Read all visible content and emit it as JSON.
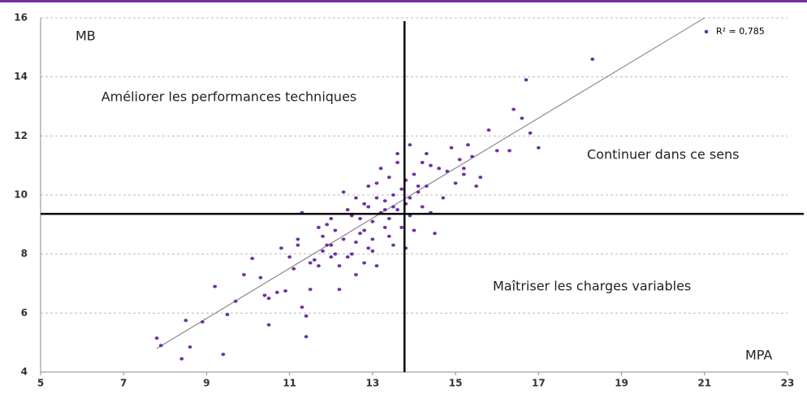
{
  "chart_data": {
    "type": "scatter",
    "xlim": [
      5,
      23
    ],
    "xticks": [
      5,
      7,
      9,
      11,
      13,
      15,
      17,
      19,
      21,
      23
    ],
    "ylim": [
      4,
      16
    ],
    "yticks": [
      4,
      6,
      8,
      10,
      12,
      14,
      16
    ],
    "grid": true,
    "color": "#7030a0",
    "x_axis_label": "MPA",
    "y_axis_label": "MB",
    "quadrant_labels": [
      "Améliorer les performances techniques",
      "Continuer dans ce sens",
      "Maîtriser les charges variables"
    ],
    "r2_label": "R² = 0,785",
    "vline": 13.77,
    "hline": 9.36,
    "trendline": {
      "x": [
        7.8,
        21
      ],
      "y": [
        4.8,
        16
      ]
    },
    "x": [
      7.8,
      7.9,
      8.4,
      8.5,
      8.6,
      8.9,
      9.2,
      9.4,
      9.5,
      9.7,
      9.9,
      10.1,
      10.3,
      10.4,
      10.5,
      10.5,
      10.7,
      10.8,
      10.9,
      11,
      11.1,
      11.2,
      11.2,
      11.3,
      11.3,
      11.4,
      11.4,
      11.5,
      11.5,
      11.6,
      11.7,
      11.8,
      11.8,
      11.9,
      12,
      12,
      12,
      12.1,
      12.2,
      12.2,
      12.3,
      12.3,
      12.4,
      12.5,
      12.5,
      12.6,
      12.6,
      12.7,
      12.8,
      12.8,
      12.9,
      12.9,
      13,
      13,
      13,
      13.1,
      13.1,
      13.2,
      13.2,
      13.3,
      13.3,
      13.4,
      13.4,
      13.5,
      13.5,
      13.6,
      13.6,
      13.7,
      13.7,
      13.8,
      13.8,
      13.9,
      13.9,
      14,
      14,
      14.1,
      14.2,
      14.3,
      14.3,
      14.4,
      14.5,
      14.6,
      14.7,
      14.8,
      14.9,
      15,
      15.1,
      15.2,
      15.3,
      15.4,
      15.5,
      15.6,
      15.8,
      16,
      16.3,
      16.4,
      16.6,
      16.7,
      16.8,
      17,
      18.3,
      12.1,
      11.7,
      12.7,
      13.3,
      13.9,
      14.2,
      13.5,
      12.9,
      13.1,
      12.4,
      13.6,
      13.8,
      11.9,
      12.6,
      14.1,
      15.2,
      13.4,
      14.4,
      12.8
    ],
    "values": [
      5.15,
      4.9,
      4.45,
      5.75,
      4.85,
      5.7,
      6.9,
      4.6,
      5.95,
      6.4,
      7.3,
      7.85,
      7.2,
      6.6,
      5.6,
      6.5,
      6.7,
      8.2,
      6.75,
      7.9,
      7.5,
      8.3,
      8.5,
      9.4,
      6.2,
      5.9,
      5.2,
      6.8,
      7.7,
      7.8,
      7.6,
      8.1,
      8.6,
      9,
      7.9,
      8.3,
      9.2,
      8.8,
      6.8,
      7.6,
      10.1,
      8.5,
      9.5,
      8,
      9.3,
      7.3,
      8.4,
      9.2,
      8.8,
      7.7,
      9.6,
      10.3,
      8.1,
      8.5,
      9.1,
      9.9,
      7.6,
      9.4,
      10.9,
      8.9,
      9.8,
      10.6,
      9.2,
      8.3,
      10,
      9.5,
      11.1,
      10.2,
      8.9,
      9.7,
      10.5,
      11.7,
      9.3,
      10.7,
      8.8,
      10.1,
      9.6,
      11.4,
      10.3,
      11,
      8.7,
      10.9,
      9.9,
      10.8,
      11.6,
      10.4,
      11.2,
      10.7,
      11.7,
      11.3,
      10.3,
      10.6,
      12.2,
      11.5,
      11.5,
      12.9,
      12.6,
      13.9,
      12.1,
      11.6,
      14.6,
      8,
      8.9,
      8.7,
      9.5,
      9.9,
      11.1,
      9.6,
      8.2,
      10.4,
      7.9,
      11.4,
      8.2,
      8.3,
      9.9,
      10.3,
      10.9,
      8.6,
      9.4,
      9.7
    ]
  }
}
